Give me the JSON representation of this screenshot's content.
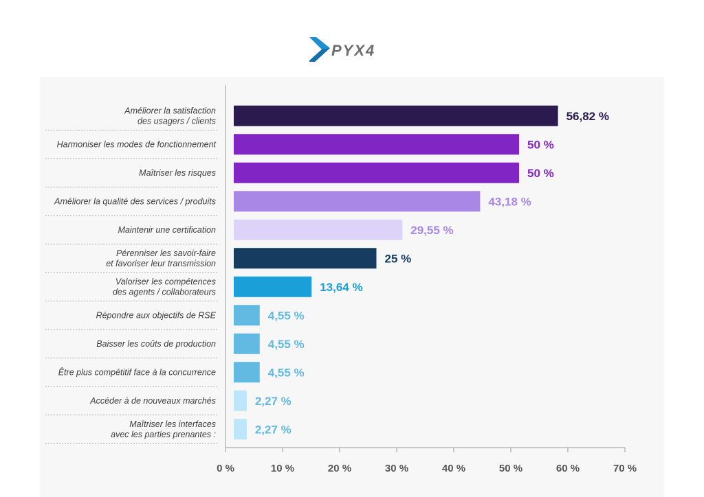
{
  "logo": {
    "text": "PYX4",
    "name": "pyx4-logo"
  },
  "chart_data": {
    "type": "bar",
    "orientation": "horizontal",
    "categories": [
      [
        "Améliorer la satisfaction",
        "des usagers / clients"
      ],
      [
        "Harmoniser les modes de fonctionnement"
      ],
      [
        "Maîtriser les risques"
      ],
      [
        "Améliorer la qualité des services / produits"
      ],
      [
        "Maintenir une certification"
      ],
      [
        "Pérenniser les savoir-faire",
        "et favoriser leur transmission"
      ],
      [
        "Valoriser les compétences",
        "des agents / collaborateurs"
      ],
      [
        "Répondre aux objectifs de RSE"
      ],
      [
        "Baisser les coûts de production"
      ],
      [
        "Être plus compétitif face à la concurrence"
      ],
      [
        "Accéder à de nouveaux marchés"
      ],
      [
        "Maîtriser les interfaces",
        "avec les parties prenantes :"
      ]
    ],
    "values": [
      56.82,
      50,
      50,
      43.18,
      29.55,
      25,
      13.64,
      4.55,
      4.55,
      4.55,
      2.27,
      2.27
    ],
    "value_labels": [
      "56,82 %",
      "50 %",
      "50 %",
      "43,18 %",
      "29,55 %",
      "25 %",
      "13,64 %",
      "4,55 %",
      "4,55 %",
      "4,55 %",
      "2,27 %",
      "2,27 %"
    ],
    "bar_colors": [
      "#2b1a4d",
      "#8125c5",
      "#8125c5",
      "#a887e6",
      "#ddd3f8",
      "#163d60",
      "#1a9fd8",
      "#62b9e1",
      "#62b9e1",
      "#62b9e1",
      "#bde6fa",
      "#bde6fa"
    ],
    "label_colors": [
      "#2b1a4d",
      "#8125c5",
      "#8125c5",
      "#a887e6",
      "#a887e6",
      "#163d60",
      "#1a9fd8",
      "#62b9e1",
      "#62b9e1",
      "#62b9e1",
      "#62b9e1",
      "#62b9e1"
    ],
    "xlim": [
      0,
      70
    ],
    "xticks": [
      0,
      10,
      20,
      30,
      40,
      50,
      60,
      70
    ],
    "xtick_labels": [
      "0 %",
      "10 %",
      "20 %",
      "30 %",
      "40 %",
      "50 %",
      "60 %",
      "70 %"
    ],
    "title": "",
    "xlabel": "",
    "ylabel": ""
  }
}
